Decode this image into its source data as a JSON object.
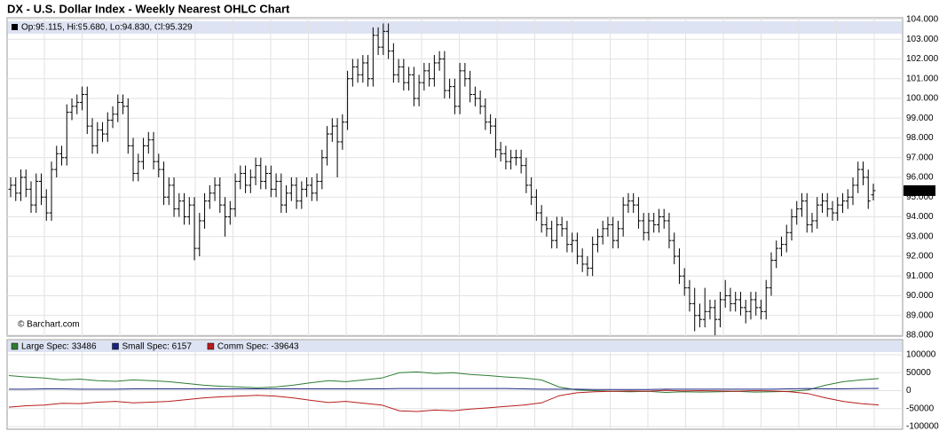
{
  "chart_data": [
    {
      "type": "ohlc",
      "title": "DX - U.S. Dollar Index - Weekly Nearest OHLC Chart",
      "legend_text": "Op:95.115, Hi:95.680, Lo:94.830, Cl:95.329",
      "last_label": "95.329",
      "watermark": "© Barchart.com",
      "color": "#000000",
      "grid": true,
      "ylim": [
        88,
        104
      ],
      "yticks": [
        {
          "value": 88,
          "label": "88.000"
        },
        {
          "value": 89,
          "label": "89.000"
        },
        {
          "value": 90,
          "label": "90.000"
        },
        {
          "value": 91,
          "label": "91.000"
        },
        {
          "value": 92,
          "label": "92.000"
        },
        {
          "value": 93,
          "label": "93.000"
        },
        {
          "value": 94,
          "label": "94.000"
        },
        {
          "value": 95,
          "label": "95.000"
        },
        {
          "value": 96,
          "label": "96.000"
        },
        {
          "value": 97,
          "label": "97.000"
        },
        {
          "value": 98,
          "label": "98.000"
        },
        {
          "value": 99,
          "label": "99.000"
        },
        {
          "value": 100,
          "label": "100.000"
        },
        {
          "value": 101,
          "label": "101.000"
        },
        {
          "value": 102,
          "label": "102.000"
        },
        {
          "value": 103,
          "label": "103.000"
        },
        {
          "value": 104,
          "label": "104.000"
        }
      ],
      "open": [
        95.4,
        95.6,
        95.2,
        96.0,
        95.4,
        94.6,
        95.8,
        95.0,
        94.2,
        96.4,
        97.2,
        97.0,
        99.3,
        99.6,
        99.8,
        100.2,
        98.6,
        97.6,
        98.4,
        98.2,
        98.9,
        99.2,
        99.8,
        99.6,
        97.6,
        96.2,
        96.8,
        97.6,
        97.9,
        96.8,
        96.4,
        95.0,
        95.6,
        94.4,
        94.8,
        94.0,
        94.6,
        92.4,
        93.8,
        94.8,
        95.2,
        95.6,
        94.6,
        94.0,
        94.4,
        95.8,
        96.2,
        95.6,
        96.0,
        96.6,
        95.8,
        96.2,
        95.4,
        95.8,
        94.6,
        95.2,
        95.6,
        94.8,
        95.4,
        95.6,
        95.2,
        95.8,
        97.0,
        98.2,
        98.6,
        97.8,
        98.8,
        101.0,
        101.6,
        101.2,
        101.8,
        101.0,
        103.2,
        102.6,
        103.4,
        102.4,
        101.2,
        101.6,
        100.8,
        101.2,
        100.0,
        100.8,
        101.4,
        101.0,
        101.8,
        102.0,
        100.4,
        100.6,
        99.6,
        101.4,
        101.0,
        100.2,
        100.0,
        99.6,
        98.8,
        98.6,
        97.4,
        97.2,
        96.8,
        97.0,
        97.0,
        96.6,
        95.6,
        95.0,
        94.2,
        93.6,
        93.4,
        92.8,
        93.6,
        93.4,
        92.6,
        92.8,
        92.0,
        91.6,
        91.4,
        92.6,
        93.0,
        93.4,
        93.6,
        92.8,
        93.4,
        94.6,
        94.8,
        94.6,
        93.8,
        93.2,
        93.8,
        93.6,
        94.0,
        93.8,
        92.8,
        92.0,
        91.0,
        90.4,
        89.6,
        89.0,
        88.8,
        89.2,
        89.4,
        88.8,
        89.8,
        90.0,
        89.6,
        89.8,
        89.4,
        89.2,
        89.8,
        89.4,
        89.2,
        90.4,
        91.8,
        92.4,
        92.6,
        93.2,
        94.0,
        94.4,
        94.8,
        93.6,
        93.8,
        94.6,
        94.8,
        94.4,
        94.2,
        94.6,
        94.8,
        95.0,
        95.6,
        96.4,
        96.0,
        95.115
      ],
      "high": [
        96.0,
        96.0,
        96.4,
        96.4,
        95.8,
        96.2,
        96.2,
        95.4,
        96.8,
        97.6,
        97.6,
        99.7,
        100.0,
        100.2,
        100.6,
        100.6,
        99.0,
        98.8,
        98.8,
        99.3,
        99.6,
        100.2,
        100.2,
        100.0,
        98.0,
        97.2,
        98.0,
        98.3,
        98.3,
        97.2,
        96.8,
        96.0,
        96.0,
        95.2,
        95.2,
        95.0,
        95.0,
        94.2,
        95.2,
        95.6,
        96.0,
        96.0,
        95.0,
        94.8,
        96.2,
        96.6,
        96.6,
        96.4,
        97.0,
        97.0,
        96.6,
        96.6,
        96.2,
        96.2,
        95.6,
        96.0,
        96.0,
        95.8,
        96.0,
        96.0,
        96.2,
        97.4,
        98.6,
        99.0,
        99.0,
        99.2,
        101.4,
        102.0,
        102.0,
        102.2,
        102.2,
        103.6,
        103.6,
        103.8,
        103.8,
        102.8,
        102.0,
        102.0,
        101.6,
        101.6,
        101.2,
        101.8,
        101.8,
        102.2,
        102.4,
        102.4,
        101.0,
        101.0,
        101.8,
        101.8,
        101.4,
        100.6,
        100.4,
        100.0,
        99.2,
        99.0,
        97.8,
        97.6,
        97.4,
        97.4,
        97.4,
        97.0,
        96.0,
        95.4,
        94.6,
        94.0,
        93.8,
        94.0,
        94.0,
        93.8,
        93.2,
        93.2,
        92.4,
        92.0,
        93.0,
        93.4,
        93.8,
        94.0,
        94.0,
        93.8,
        95.0,
        95.2,
        95.2,
        95.0,
        94.2,
        94.2,
        94.2,
        94.4,
        94.4,
        94.2,
        93.2,
        92.4,
        91.4,
        90.8,
        90.4,
        89.6,
        90.4,
        89.8,
        89.8,
        90.2,
        90.8,
        90.4,
        90.2,
        90.2,
        89.8,
        90.2,
        90.2,
        89.8,
        90.8,
        92.2,
        92.8,
        93.0,
        93.6,
        94.4,
        94.8,
        95.2,
        95.2,
        94.2,
        95.0,
        95.2,
        95.2,
        94.8,
        95.0,
        95.2,
        95.4,
        96.0,
        96.8,
        96.8,
        96.4,
        95.68
      ],
      "low": [
        95.0,
        94.8,
        94.8,
        95.0,
        94.2,
        94.2,
        94.6,
        93.8,
        93.8,
        96.0,
        96.6,
        96.6,
        98.9,
        99.2,
        99.4,
        98.2,
        97.2,
        97.2,
        97.8,
        97.8,
        98.5,
        98.8,
        99.2,
        97.2,
        95.8,
        95.8,
        96.4,
        97.2,
        96.4,
        96.0,
        94.6,
        94.6,
        94.0,
        94.0,
        93.6,
        93.6,
        91.8,
        92.0,
        93.4,
        94.4,
        94.8,
        94.2,
        93.0,
        93.6,
        94.0,
        95.4,
        95.2,
        95.2,
        95.6,
        95.4,
        95.4,
        95.0,
        95.0,
        94.2,
        94.2,
        94.8,
        94.4,
        94.4,
        95.0,
        94.8,
        94.8,
        95.4,
        96.6,
        97.8,
        96.0,
        97.4,
        98.4,
        100.6,
        100.8,
        100.8,
        100.6,
        100.6,
        102.2,
        102.2,
        102.0,
        100.8,
        100.8,
        100.4,
        100.4,
        99.6,
        99.6,
        100.4,
        100.6,
        100.6,
        101.4,
        100.0,
        100.0,
        99.2,
        99.2,
        100.6,
        99.8,
        99.6,
        99.2,
        98.4,
        98.2,
        97.0,
        96.8,
        96.4,
        96.4,
        96.6,
        96.2,
        95.2,
        94.6,
        93.8,
        93.2,
        93.0,
        92.4,
        92.4,
        93.0,
        92.2,
        92.2,
        91.6,
        91.2,
        91.0,
        91.0,
        92.2,
        92.6,
        93.0,
        92.4,
        92.4,
        93.0,
        94.2,
        94.2,
        93.4,
        92.8,
        92.8,
        93.2,
        93.2,
        93.4,
        92.4,
        91.6,
        90.6,
        90.0,
        89.2,
        88.2,
        88.4,
        88.4,
        88.8,
        88.0,
        88.4,
        89.4,
        89.2,
        89.2,
        89.0,
        88.6,
        88.8,
        89.0,
        88.8,
        88.8,
        90.0,
        91.4,
        92.0,
        92.2,
        92.8,
        93.6,
        94.0,
        93.2,
        93.2,
        93.4,
        94.2,
        94.0,
        93.8,
        93.8,
        94.2,
        94.4,
        94.6,
        95.2,
        95.6,
        94.4,
        94.83
      ],
      "close": [
        95.6,
        95.2,
        96.0,
        95.4,
        94.6,
        95.8,
        95.0,
        94.2,
        96.4,
        97.2,
        97.0,
        99.3,
        99.6,
        99.8,
        100.2,
        98.6,
        97.6,
        98.4,
        98.2,
        98.9,
        99.2,
        99.8,
        99.6,
        97.6,
        96.2,
        96.8,
        97.6,
        97.9,
        96.8,
        96.4,
        95.0,
        95.6,
        94.4,
        94.8,
        94.0,
        94.6,
        92.4,
        93.8,
        94.8,
        95.2,
        95.6,
        94.6,
        94.0,
        94.4,
        95.8,
        96.2,
        95.6,
        96.0,
        96.6,
        95.8,
        96.2,
        95.4,
        95.8,
        94.6,
        95.2,
        95.6,
        94.8,
        95.4,
        95.6,
        95.2,
        95.8,
        97.0,
        98.2,
        98.6,
        97.8,
        98.8,
        101.0,
        101.6,
        101.2,
        101.8,
        101.0,
        103.2,
        102.6,
        103.4,
        102.4,
        101.2,
        101.6,
        100.8,
        101.2,
        100.0,
        100.8,
        101.4,
        101.0,
        101.8,
        102.0,
        100.4,
        100.6,
        99.6,
        101.4,
        101.0,
        100.2,
        100.0,
        99.6,
        98.8,
        98.6,
        97.4,
        97.2,
        96.8,
        97.0,
        97.0,
        96.6,
        95.6,
        95.0,
        94.2,
        93.6,
        93.4,
        92.8,
        93.6,
        93.4,
        92.6,
        92.8,
        92.0,
        91.6,
        91.4,
        92.6,
        93.0,
        93.4,
        93.6,
        92.8,
        93.4,
        94.6,
        94.8,
        94.6,
        93.8,
        93.2,
        93.8,
        93.6,
        94.0,
        93.8,
        92.8,
        92.0,
        91.0,
        90.4,
        89.6,
        89.0,
        88.8,
        89.2,
        89.4,
        88.8,
        89.8,
        90.0,
        89.6,
        89.8,
        89.4,
        89.2,
        89.8,
        89.4,
        89.2,
        90.4,
        91.8,
        92.4,
        92.6,
        93.2,
        94.0,
        94.4,
        94.8,
        93.6,
        93.8,
        94.6,
        94.8,
        94.4,
        94.2,
        94.6,
        94.8,
        95.0,
        95.6,
        96.4,
        96.0,
        94.8,
        95.329
      ]
    },
    {
      "type": "line",
      "grid": true,
      "ylim": [
        -100000,
        100000
      ],
      "yticks": [
        -100000,
        -50000,
        0,
        50000,
        100000
      ],
      "series": [
        {
          "name": "Large Spec: 33486",
          "color": "#2e7d32",
          "values": [
            42000,
            38000,
            35000,
            30000,
            32000,
            28000,
            26000,
            30000,
            28000,
            25000,
            20000,
            15000,
            12000,
            10000,
            8000,
            10000,
            15000,
            22000,
            28000,
            25000,
            30000,
            35000,
            50000,
            52000,
            48000,
            50000,
            45000,
            42000,
            38000,
            35000,
            30000,
            10000,
            2000,
            0,
            -2000,
            -3000,
            -2000,
            -5000,
            -3000,
            -4000,
            -3000,
            -2000,
            -4000,
            -3000,
            -2000,
            2000,
            15000,
            25000,
            30000,
            33486
          ]
        },
        {
          "name": "Small Spec: 6157",
          "color": "#1a237e",
          "values": [
            4000,
            4000,
            5000,
            5000,
            4000,
            4000,
            4000,
            5000,
            5000,
            5000,
            5000,
            5000,
            5000,
            5000,
            5000,
            5000,
            5000,
            5000,
            5000,
            5000,
            5000,
            5000,
            6000,
            6000,
            6000,
            6000,
            6000,
            6000,
            6000,
            5000,
            4000,
            4000,
            4000,
            3000,
            3000,
            3000,
            3000,
            4000,
            4000,
            4000,
            4000,
            4000,
            4000,
            4000,
            5000,
            6000,
            5000,
            5000,
            6000,
            6157
          ]
        },
        {
          "name": "Comm Spec: -39643",
          "color": "#b71c1c",
          "values": [
            -46000,
            -42000,
            -40000,
            -35000,
            -36000,
            -32000,
            -30000,
            -34000,
            -32000,
            -30000,
            -25000,
            -20000,
            -17000,
            -15000,
            -13000,
            -15000,
            -20000,
            -27000,
            -33000,
            -30000,
            -35000,
            -40000,
            -56000,
            -58000,
            -54000,
            -56000,
            -51000,
            -48000,
            -44000,
            -40000,
            -34000,
            -14000,
            -6000,
            -3000,
            -2000,
            -1000,
            -2000,
            1000,
            -1000,
            0,
            -1000,
            -2000,
            0,
            -1000,
            -3000,
            -8000,
            -20000,
            -30000,
            -36000,
            -39643
          ]
        }
      ]
    }
  ]
}
